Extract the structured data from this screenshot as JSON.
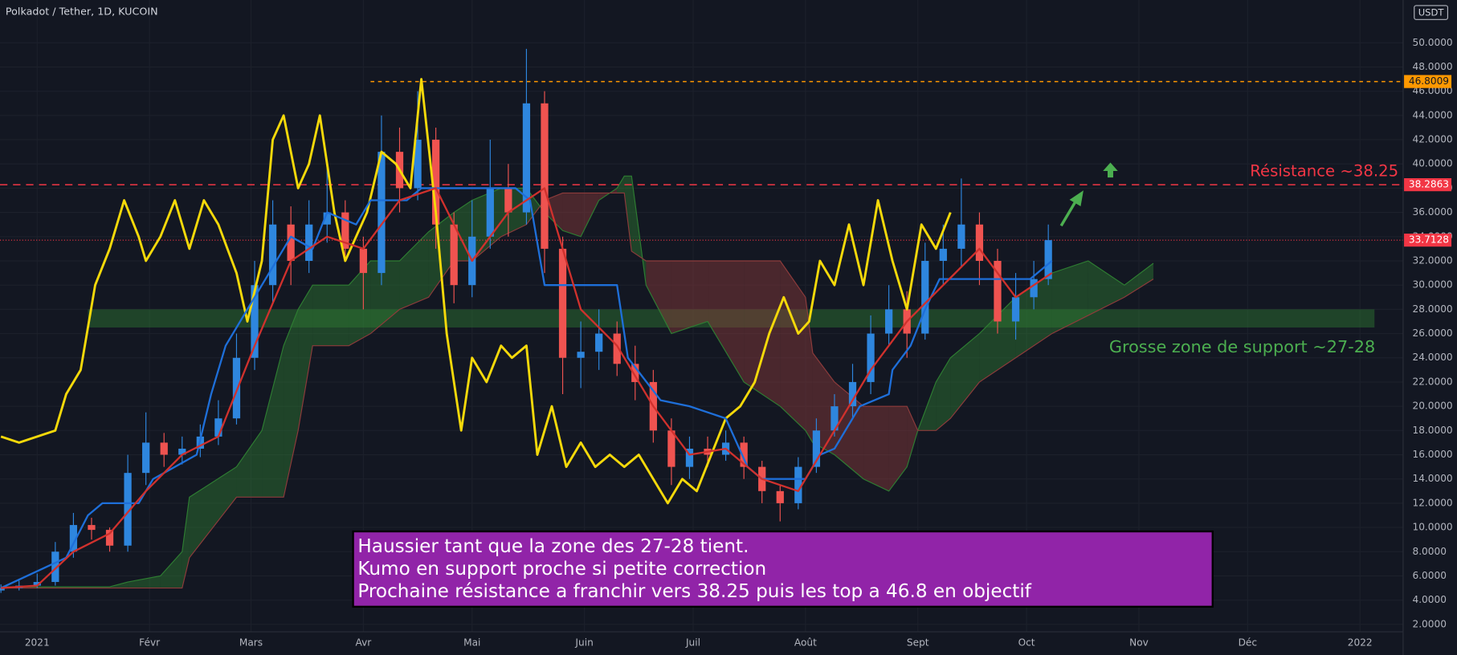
{
  "chart_data": {
    "type": "candlestick",
    "title": "Polkadot / Tether, 1D, KUCOIN",
    "currency": "USDT",
    "up_color": "#2e86de",
    "down_color": "#ef5350",
    "x": [
      -10,
      -5,
      0,
      5,
      10,
      15,
      20,
      25,
      30,
      35,
      40,
      45,
      50,
      55,
      60,
      65,
      70,
      75,
      80,
      85,
      90,
      95,
      100,
      105,
      110,
      115,
      120,
      125,
      130,
      135,
      140,
      145,
      150,
      155,
      160,
      165,
      170,
      175,
      180,
      185,
      190,
      195,
      200,
      205,
      210,
      215,
      220,
      225,
      230,
      235,
      240,
      245,
      250,
      255,
      260,
      265,
      270,
      275,
      279
    ],
    "open": [
      4.8,
      5.0,
      5.2,
      5.5,
      8.0,
      10.2,
      9.8,
      8.5,
      14.5,
      17.0,
      16.0,
      16.5,
      17.5,
      19.0,
      24.0,
      30.0,
      35.0,
      32.0,
      35.0,
      36.0,
      33.0,
      31.0,
      41.0,
      38.0,
      42.0,
      35.0,
      30.0,
      34.0,
      38.0,
      36.0,
      45.0,
      33.0,
      24.0,
      24.5,
      26.0,
      23.5,
      22.0,
      18.0,
      15.0,
      16.5,
      16.0,
      17.0,
      15.0,
      13.0,
      12.0,
      15.0,
      18.0,
      20.0,
      22.0,
      26.0,
      28.0,
      26.0,
      32.0,
      33.0,
      35.0,
      32.0,
      27.0,
      29.0,
      30.5
    ],
    "high": [
      5.3,
      5.6,
      6.2,
      8.8,
      11.2,
      10.8,
      10.0,
      16.0,
      19.5,
      17.8,
      17.5,
      18.5,
      20.5,
      26.0,
      32.0,
      37.0,
      36.5,
      37.0,
      40.0,
      37.0,
      34.0,
      44.0,
      43.0,
      46.0,
      43.0,
      36.0,
      37.0,
      42.0,
      40.0,
      49.5,
      46.0,
      34.0,
      27.0,
      28.0,
      27.0,
      25.0,
      23.0,
      19.0,
      17.5,
      17.5,
      18.0,
      17.5,
      15.5,
      13.5,
      15.8,
      19.0,
      21.0,
      23.5,
      27.5,
      30.0,
      29.5,
      33.5,
      35.0,
      38.8,
      36.0,
      33.0,
      31.0,
      32.0,
      35.0
    ],
    "low": [
      4.6,
      4.8,
      5.0,
      5.2,
      7.5,
      9.0,
      8.0,
      8.0,
      13.5,
      15.0,
      15.2,
      15.8,
      16.8,
      18.5,
      23.0,
      28.5,
      30.0,
      31.0,
      33.5,
      32.0,
      28.0,
      30.0,
      36.0,
      37.0,
      33.0,
      28.5,
      29.0,
      33.0,
      34.0,
      35.0,
      31.0,
      21.0,
      21.5,
      23.0,
      22.5,
      20.5,
      17.0,
      13.5,
      14.0,
      15.0,
      15.5,
      14.0,
      12.0,
      10.5,
      11.5,
      14.5,
      17.5,
      19.0,
      21.0,
      25.0,
      24.0,
      25.5,
      30.0,
      31.5,
      30.0,
      26.0,
      25.5,
      28.0,
      30.0
    ],
    "close": [
      5.0,
      5.2,
      5.5,
      8.0,
      10.2,
      9.8,
      8.5,
      14.5,
      17.0,
      16.0,
      16.5,
      17.5,
      19.0,
      24.0,
      30.0,
      35.0,
      32.0,
      35.0,
      36.0,
      33.0,
      31.0,
      41.0,
      38.0,
      42.0,
      35.0,
      30.0,
      34.0,
      38.0,
      36.0,
      45.0,
      33.0,
      24.0,
      24.5,
      26.0,
      23.5,
      22.0,
      18.0,
      15.0,
      16.5,
      16.0,
      17.0,
      15.0,
      13.0,
      12.0,
      15.0,
      18.0,
      20.0,
      22.0,
      26.0,
      28.0,
      26.0,
      32.0,
      33.0,
      35.0,
      32.0,
      27.0,
      29.0,
      30.5,
      33.7128
    ],
    "series": [
      {
        "color": "#f5d90a",
        "x": [
          -10,
          -5,
          0,
          5,
          8,
          12,
          16,
          20,
          24,
          28,
          30,
          34,
          38,
          42,
          46,
          50,
          55,
          58,
          62,
          65,
          68,
          72,
          75,
          78,
          82,
          85,
          88,
          91,
          95,
          99,
          103,
          106,
          110,
          113,
          117,
          120,
          124,
          128,
          131,
          135,
          138,
          142,
          146,
          150,
          154,
          158,
          162,
          166,
          170,
          174,
          178,
          182,
          186,
          190,
          194,
          198,
          202,
          206,
          210,
          213,
          216,
          220,
          224,
          228,
          232,
          236,
          240,
          244,
          248,
          252
        ],
        "values": [
          17.5,
          17,
          17.5,
          18,
          21,
          23,
          30,
          33,
          37,
          34,
          32,
          34,
          37,
          33,
          37,
          35,
          31,
          27,
          32,
          42,
          44,
          38,
          40,
          44,
          36,
          32,
          34,
          36,
          41,
          40,
          38,
          47,
          36,
          26,
          18,
          24,
          22,
          25,
          24,
          25,
          16,
          20,
          15,
          17,
          15,
          16,
          15,
          16,
          14,
          12,
          14,
          13,
          16,
          19,
          20,
          22,
          26,
          29,
          26,
          27,
          32,
          30,
          35,
          30,
          37,
          32,
          28,
          35,
          33,
          36
        ]
      },
      {
        "color": "#1e6fd9",
        "x": [
          -10,
          8,
          14,
          18,
          28,
          32,
          38,
          44,
          48,
          52,
          56,
          62,
          70,
          76,
          80,
          88,
          92,
          102,
          106,
          120,
          132,
          136,
          140,
          160,
          163,
          172,
          180,
          190,
          196,
          200,
          212,
          216,
          220,
          227,
          235,
          236,
          241,
          245,
          249,
          274,
          280
        ],
        "values": [
          5,
          7.5,
          11,
          12,
          12,
          14,
          15,
          16,
          21,
          25,
          27,
          30,
          34,
          33,
          36,
          35,
          37,
          37,
          38,
          38,
          38,
          37,
          30,
          30,
          24,
          20.5,
          20,
          19,
          15,
          14,
          14,
          16,
          16.5,
          20,
          21,
          23,
          25,
          28,
          30.5,
          30.5,
          32
        ]
      },
      {
        "color": "#d0312d",
        "x": [
          -10,
          0,
          10,
          20,
          30,
          40,
          50,
          60,
          70,
          80,
          90,
          100,
          110,
          120,
          130,
          140,
          150,
          160,
          170,
          180,
          190,
          200,
          210,
          220,
          230,
          240,
          250,
          260,
          270,
          280
        ],
        "values": [
          5,
          5.2,
          8,
          9.5,
          13,
          16,
          17.5,
          25,
          32,
          34,
          33,
          37,
          38,
          32,
          36,
          38,
          28,
          25,
          20,
          16,
          16.5,
          14,
          13,
          18,
          23,
          27,
          30,
          33,
          29,
          31
        ]
      }
    ],
    "cloud": {
      "up_color": "#2e7d32",
      "down_color": "#8d3b3b",
      "x": [
        -10,
        20,
        25,
        34,
        40,
        42,
        55,
        62,
        68,
        72,
        76,
        86,
        92,
        100,
        108,
        115,
        120,
        128,
        135,
        140,
        145,
        150,
        155,
        160,
        162,
        164,
        168,
        175,
        185,
        195,
        205,
        212,
        214,
        220,
        228,
        235,
        240,
        243,
        248,
        252,
        260,
        270,
        280,
        290,
        300,
        308
      ],
      "span_a": [
        5.1,
        5.1,
        5.5,
        6,
        8,
        12.5,
        15,
        18,
        25,
        28,
        30,
        30,
        32,
        32,
        34.4,
        36,
        37,
        38,
        38,
        36,
        34.5,
        34,
        37,
        38,
        39,
        39,
        30,
        26,
        27,
        22,
        20,
        18,
        17,
        16,
        14,
        13,
        15,
        18,
        22,
        24,
        26,
        29,
        31,
        32,
        30,
        31.8
      ],
      "span_b": [
        5,
        5,
        5,
        5,
        5,
        7.5,
        12.5,
        12.5,
        12.5,
        18,
        25,
        25,
        26,
        28,
        29,
        32,
        32,
        34,
        35,
        37,
        37.6,
        37.6,
        37.6,
        37.6,
        37.6,
        32.8,
        32,
        32,
        32,
        32,
        32,
        29,
        24.4,
        22,
        20,
        20,
        20,
        18,
        18,
        19,
        22,
        24,
        26,
        27.5,
        29,
        30.5
      ]
    },
    "zone": {
      "low": 26.5,
      "high": 28,
      "x": [
        14,
        369
      ],
      "color": "#2e7d32"
    },
    "levels": [
      {
        "value": 46.8009,
        "color": "#ff9800",
        "style": "dashed",
        "start": 92
      },
      {
        "value": 38.2863,
        "color": "#f23645",
        "style": "dashed",
        "start": -10.26
      },
      {
        "value": 33.7128,
        "color": "#f23645",
        "style": "dotted",
        "start": -10.26
      }
    ],
    "annotations": {
      "resistance": "Résistance ~38.25",
      "support": "Grosse zone de support ~27-28"
    },
    "note": [
      "Haussier tant que la zone des 27-28 tient.",
      "Kumo en support proche si petite correction",
      "Prochaine résistance a franchir vers 38.25 puis les top a 46.8 en objectif"
    ],
    "grid": true,
    "xlim": [
      -10.26,
      376.9
    ],
    "ylim": [
      1.39,
      53.53
    ],
    "xticks": [
      {
        "value": 0,
        "label": "2021"
      },
      {
        "value": 31,
        "label": "Févr"
      },
      {
        "value": 59,
        "label": "Mars"
      },
      {
        "value": 90,
        "label": "Avr"
      },
      {
        "value": 120,
        "label": "Mai"
      },
      {
        "value": 151,
        "label": "Juin"
      },
      {
        "value": 181,
        "label": "Juil"
      },
      {
        "value": 212,
        "label": "Août"
      },
      {
        "value": 243,
        "label": "Sept"
      },
      {
        "value": 273,
        "label": "Oct"
      },
      {
        "value": 304,
        "label": "Nov"
      },
      {
        "value": 334,
        "label": "Déc"
      },
      {
        "value": 365,
        "label": "2022"
      }
    ],
    "yticks": [
      {
        "value": 2,
        "label": "2.0000"
      },
      {
        "value": 4,
        "label": "4.0000"
      },
      {
        "value": 6,
        "label": "6.0000"
      },
      {
        "value": 8,
        "label": "8.0000"
      },
      {
        "value": 10,
        "label": "10.0000"
      },
      {
        "value": 12,
        "label": "12.0000"
      },
      {
        "value": 14,
        "label": "14.0000"
      },
      {
        "value": 16,
        "label": "16.0000"
      },
      {
        "value": 18,
        "label": "18.0000"
      },
      {
        "value": 20,
        "label": "20.0000"
      },
      {
        "value": 22,
        "label": "22.0000"
      },
      {
        "value": 24,
        "label": "24.0000"
      },
      {
        "value": 26,
        "label": "26.0000"
      },
      {
        "value": 28,
        "label": "28.0000"
      },
      {
        "value": 30,
        "label": "30.0000"
      },
      {
        "value": 32,
        "label": "32.0000"
      },
      {
        "value": 34,
        "label": "34.0000"
      },
      {
        "value": 36,
        "label": "36.0000"
      },
      {
        "value": 38,
        "label": "38.0000"
      },
      {
        "value": 40,
        "label": "40.0000"
      },
      {
        "value": 42,
        "label": "42.0000"
      },
      {
        "value": 44,
        "label": "44.0000"
      },
      {
        "value": 46,
        "label": "46.0000"
      },
      {
        "value": 48,
        "label": "48.0000"
      },
      {
        "value": 50,
        "label": "50.0000"
      }
    ]
  }
}
